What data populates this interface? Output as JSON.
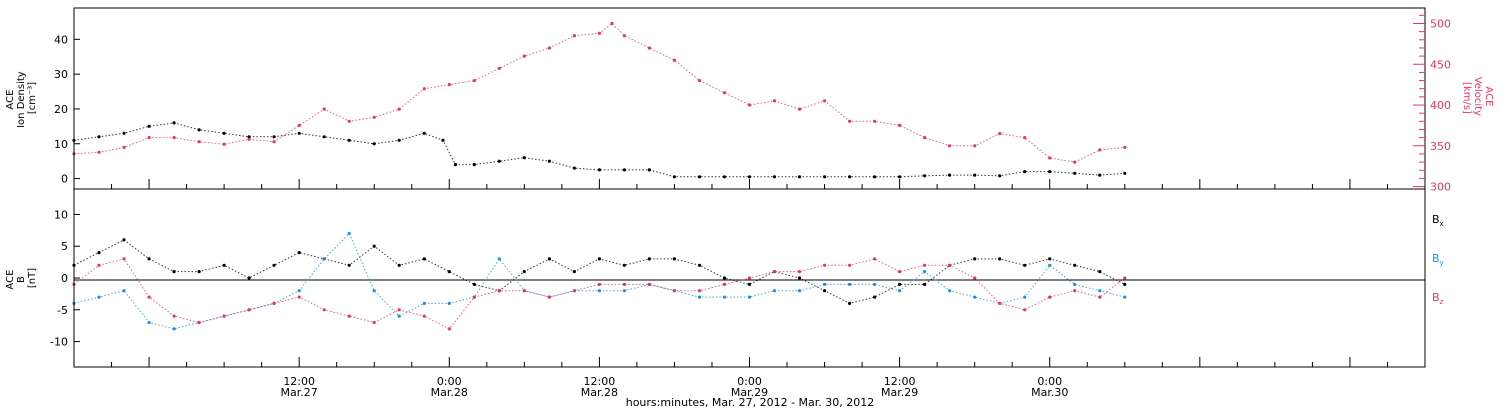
{
  "colors": {
    "black": "#000000",
    "pink": "#e8336a",
    "blue": "#1f8fe0"
  },
  "xaxis": {
    "label": "hours:minutes, Mar. 27, 2012 - Mar. 30, 2012",
    "range_hours": [
      -6,
      102
    ],
    "ticks": [
      {
        "hours": 12,
        "time": "12:00",
        "date": "Mar.27"
      },
      {
        "hours": 24,
        "time": "0:00",
        "date": "Mar.28"
      },
      {
        "hours": 36,
        "time": "12:00",
        "date": "Mar.28"
      },
      {
        "hours": 48,
        "time": "0:00",
        "date": "Mar.29"
      },
      {
        "hours": 60,
        "time": "12:00",
        "date": "Mar.29"
      },
      {
        "hours": 72,
        "time": "0:00",
        "date": "Mar.30"
      }
    ]
  },
  "chart_data": [
    {
      "type": "scatter",
      "panel": "top",
      "x_unit": "hours from Mar.27 00:00",
      "left_axis": {
        "label_lines": [
          "ACE",
          "Ion Density",
          "[cm⁻³]"
        ],
        "ylim": [
          -3,
          49
        ],
        "ticks": [
          0,
          10,
          20,
          30,
          40
        ]
      },
      "right_axis": {
        "label_lines": [
          "ACE",
          "Velocity",
          "[km/s]"
        ],
        "ylim": [
          297,
          519
        ],
        "ticks": [
          300,
          350,
          400,
          450,
          500
        ]
      },
      "series": [
        {
          "axis": "left",
          "color": "#000000",
          "x": [
            -6,
            -4,
            -2,
            0,
            2,
            4,
            6,
            8,
            10,
            12,
            14,
            16,
            18,
            20,
            22,
            23.5,
            24.5,
            26,
            28,
            30,
            32,
            34,
            36,
            38,
            40,
            42,
            44,
            46,
            48,
            50,
            52,
            54,
            56,
            58,
            60,
            62,
            64,
            66,
            68,
            70,
            72,
            74,
            76,
            78
          ],
          "y": [
            11,
            12,
            13,
            15,
            16,
            14,
            13,
            12,
            12,
            13,
            12,
            11,
            10,
            11,
            13,
            11,
            4,
            4,
            5,
            6,
            5,
            3,
            2.5,
            2.5,
            2.5,
            0.5,
            0.5,
            0.5,
            0.5,
            0.5,
            0.5,
            0.5,
            0.5,
            0.5,
            0.5,
            0.8,
            1,
            1,
            0.8,
            2,
            2,
            1.5,
            1,
            1.5
          ]
        },
        {
          "axis": "right",
          "color": "#e8336a",
          "x": [
            -6,
            -4,
            -2,
            0,
            2,
            4,
            6,
            8,
            10,
            12,
            14,
            16,
            18,
            20,
            22,
            24,
            26,
            28,
            30,
            32,
            34,
            36,
            37,
            38,
            40,
            42,
            44,
            46,
            48,
            50,
            52,
            54,
            56,
            58,
            60,
            62,
            64,
            66,
            68,
            70,
            72,
            74,
            76,
            78
          ],
          "y": [
            340,
            342,
            348,
            360,
            360,
            355,
            352,
            358,
            355,
            375,
            395,
            380,
            385,
            395,
            420,
            425,
            430,
            445,
            460,
            470,
            485,
            488,
            500,
            485,
            470,
            455,
            430,
            415,
            400,
            405,
            395,
            405,
            380,
            380,
            375,
            360,
            350,
            350,
            365,
            360,
            335,
            330,
            345,
            348
          ]
        }
      ]
    },
    {
      "type": "scatter",
      "panel": "bottom",
      "x_unit": "hours from Mar.27 00:00",
      "left_axis": {
        "label_lines": [
          "ACE",
          "B",
          "[nT]"
        ],
        "ylim": [
          -14,
          14
        ],
        "ticks": [
          -10,
          -5,
          0,
          5,
          10
        ]
      },
      "zero_line": true,
      "legend_position": "right",
      "series": [
        {
          "name": "Bx",
          "color": "#000000",
          "x": [
            -6,
            -4,
            -2,
            0,
            2,
            4,
            6,
            8,
            10,
            12,
            14,
            16,
            18,
            20,
            22,
            24,
            26,
            28,
            30,
            32,
            34,
            36,
            38,
            40,
            42,
            44,
            46,
            48,
            50,
            52,
            54,
            56,
            58,
            60,
            62,
            64,
            66,
            68,
            70,
            72,
            74,
            76,
            78
          ],
          "y": [
            2,
            4,
            6,
            3,
            1,
            1,
            2,
            0,
            2,
            4,
            3,
            2,
            5,
            2,
            3,
            1,
            -1,
            -2,
            1,
            3,
            1,
            3,
            2,
            3,
            3,
            2,
            0,
            -1,
            1,
            0,
            -2,
            -4,
            -3,
            -1,
            -1,
            2,
            3,
            3,
            2,
            3,
            2,
            1,
            -1
          ]
        },
        {
          "name": "By",
          "color": "#1f8fe0",
          "x": [
            -6,
            -4,
            -2,
            0,
            2,
            4,
            6,
            8,
            10,
            12,
            14,
            16,
            18,
            20,
            22,
            24,
            26,
            28,
            30,
            32,
            34,
            36,
            38,
            40,
            42,
            44,
            46,
            48,
            50,
            52,
            54,
            56,
            58,
            60,
            62,
            64,
            66,
            68,
            70,
            72,
            74,
            76,
            78
          ],
          "y": [
            -4,
            -3,
            -2,
            -7,
            -8,
            -7,
            -6,
            -5,
            -4,
            -2,
            3,
            7,
            -2,
            -6,
            -4,
            -4,
            -3,
            3,
            -2,
            -3,
            -2,
            -2,
            -2,
            -1,
            -2,
            -3,
            -3,
            -3,
            -2,
            -2,
            -1,
            -1,
            -1,
            -2,
            1,
            -2,
            -3,
            -4,
            -3,
            2,
            -1,
            -2,
            -3
          ]
        },
        {
          "name": "Bz",
          "color": "#e8336a",
          "x": [
            -6,
            -4,
            -2,
            0,
            2,
            4,
            6,
            8,
            10,
            12,
            14,
            16,
            18,
            20,
            22,
            24,
            26,
            28,
            30,
            32,
            34,
            36,
            38,
            40,
            42,
            44,
            46,
            48,
            50,
            52,
            54,
            56,
            58,
            60,
            62,
            64,
            66,
            68,
            70,
            72,
            74,
            76,
            78
          ],
          "y": [
            -1,
            2,
            3,
            -3,
            -6,
            -7,
            -6,
            -5,
            -4,
            -3,
            -5,
            -6,
            -7,
            -5,
            -6,
            -8,
            -3,
            -2,
            -2,
            -3,
            -2,
            -1,
            -1,
            -1,
            -2,
            -2,
            -1,
            0,
            1,
            1,
            2,
            2,
            3,
            1,
            2,
            2,
            0,
            -4,
            -5,
            -3,
            -2,
            -3,
            0
          ]
        }
      ],
      "legend": [
        {
          "letter": "B",
          "sub": "x",
          "color": "#000000"
        },
        {
          "letter": "B",
          "sub": "y",
          "color": "#1f8fe0"
        },
        {
          "letter": "B",
          "sub": "z",
          "color": "#e8336a"
        }
      ]
    }
  ]
}
